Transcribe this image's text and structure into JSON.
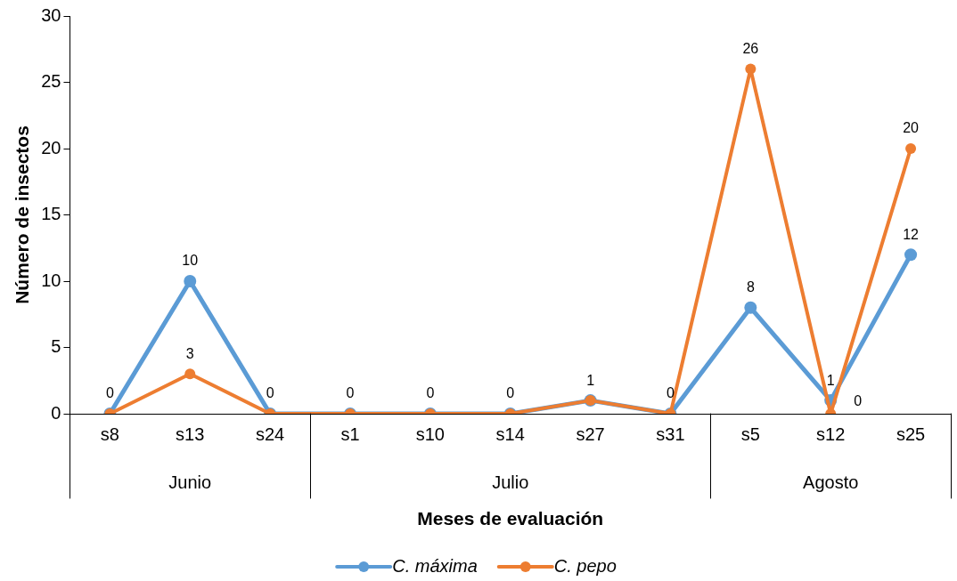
{
  "chart_data": {
    "type": "line",
    "xlabel": "Meses de evaluación",
    "ylabel": "Número de insectos",
    "categories": [
      "s8",
      "s13",
      "s24",
      "s1",
      "s10",
      "s14",
      "s27",
      "s31",
      "s5",
      "s12",
      "s25"
    ],
    "series": [
      {
        "name": "C. máxima",
        "color": "#5b9bd5",
        "values": [
          0,
          10,
          0,
          0,
          0,
          0,
          1,
          0,
          8,
          1,
          12
        ],
        "value_labels": [
          "0",
          "10",
          "0",
          "0",
          "0",
          "0",
          "1",
          "0",
          "8",
          "1",
          "12"
        ]
      },
      {
        "name": "C. pepo",
        "color": "#ed7d31",
        "values": [
          0,
          3,
          0,
          0,
          0,
          0,
          1,
          0,
          26,
          0,
          20
        ],
        "value_labels": [
          null,
          "3",
          null,
          null,
          null,
          null,
          null,
          null,
          "26",
          "0",
          "20"
        ]
      }
    ],
    "ylim": [
      0,
      30
    ],
    "yticks": [
      0,
      5,
      10,
      15,
      20,
      25,
      30
    ],
    "grid": false,
    "legend": "bottom",
    "marker": "circle",
    "line_style": "solid",
    "annotations": [
      "Junio",
      "Julio",
      "Agosto"
    ]
  }
}
